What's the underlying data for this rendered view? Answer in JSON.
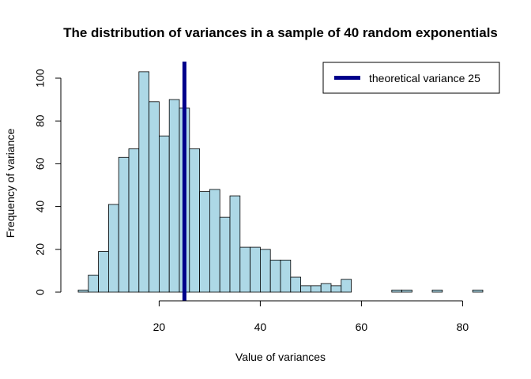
{
  "chart_data": {
    "type": "bar",
    "title": "The distribution of variances in a sample of 40 random exponentials",
    "xlabel": "Value of variances",
    "ylabel": "Frequency of variance",
    "xlim": [
      4,
      84
    ],
    "ylim": [
      0,
      100
    ],
    "x_ticks": [
      20,
      40,
      60,
      80
    ],
    "y_ticks": [
      0,
      20,
      40,
      60,
      80,
      100
    ],
    "bin_width": 2,
    "bins_start": 4,
    "values": [
      1,
      8,
      19,
      41,
      63,
      67,
      103,
      89,
      73,
      90,
      86,
      67,
      47,
      48,
      35,
      45,
      21,
      21,
      20,
      15,
      15,
      7,
      3,
      3,
      4,
      3,
      6,
      0,
      0,
      0,
      0,
      1,
      1,
      0,
      0,
      1,
      0,
      0,
      0,
      1
    ],
    "reference_line": {
      "x": 25,
      "color": "#00008b",
      "label": "theoretical variance 25"
    },
    "bar_fill": "#add8e6",
    "bar_stroke": "#000000",
    "legend_position": "top-right",
    "grid": false
  }
}
